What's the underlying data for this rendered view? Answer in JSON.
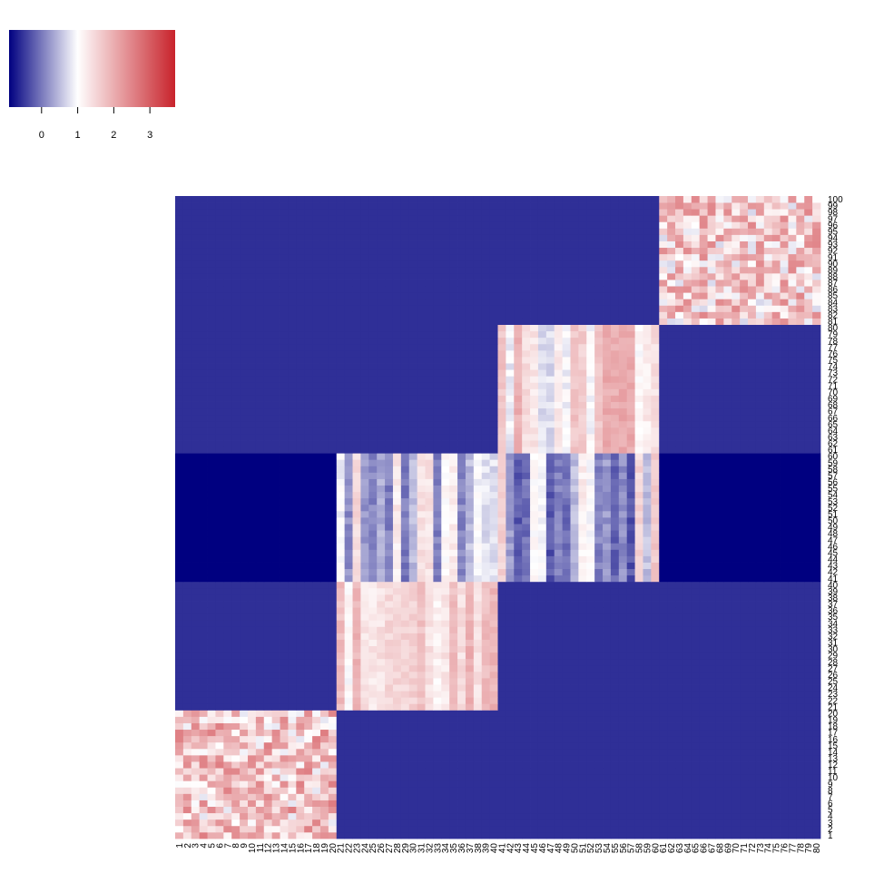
{
  "chart_data": {
    "type": "heatmap",
    "title": "",
    "xlabel": "",
    "ylabel": "",
    "n_cols": 80,
    "n_rows": 100,
    "x_tick_labels": [
      "1",
      "2",
      "3",
      "4",
      "5",
      "6",
      "7",
      "8",
      "9",
      "10",
      "11",
      "12",
      "13",
      "14",
      "15",
      "16",
      "17",
      "18",
      "19",
      "20",
      "21",
      "22",
      "23",
      "24",
      "25",
      "26",
      "27",
      "28",
      "29",
      "30",
      "31",
      "32",
      "33",
      "34",
      "35",
      "36",
      "37",
      "38",
      "39",
      "40",
      "41",
      "42",
      "43",
      "44",
      "45",
      "46",
      "47",
      "48",
      "49",
      "50",
      "51",
      "52",
      "53",
      "54",
      "55",
      "56",
      "57",
      "58",
      "59",
      "60",
      "61",
      "62",
      "63",
      "64",
      "65",
      "66",
      "67",
      "68",
      "69",
      "70",
      "71",
      "72",
      "73",
      "74",
      "75",
      "76",
      "77",
      "78",
      "79",
      "80"
    ],
    "y_tick_labels": [
      "1",
      "2",
      "3",
      "4",
      "5",
      "6",
      "7",
      "8",
      "9",
      "10",
      "11",
      "12",
      "13",
      "14",
      "15",
      "16",
      "17",
      "18",
      "19",
      "20",
      "21",
      "22",
      "23",
      "24",
      "25",
      "26",
      "27",
      "28",
      "29",
      "30",
      "31",
      "32",
      "33",
      "34",
      "35",
      "36",
      "37",
      "38",
      "39",
      "40",
      "41",
      "42",
      "43",
      "44",
      "45",
      "46",
      "47",
      "48",
      "49",
      "50",
      "51",
      "52",
      "53",
      "54",
      "55",
      "56",
      "57",
      "58",
      "59",
      "60",
      "61",
      "62",
      "63",
      "64",
      "65",
      "66",
      "67",
      "68",
      "69",
      "70",
      "71",
      "72",
      "73",
      "74",
      "75",
      "76",
      "77",
      "78",
      "79",
      "80",
      "81",
      "82",
      "83",
      "84",
      "85",
      "86",
      "87",
      "88",
      "89",
      "90",
      "91",
      "92",
      "93",
      "94",
      "95",
      "96",
      "97",
      "98",
      "99",
      "100"
    ],
    "color_scale": {
      "stops": [
        {
          "value": -0.9,
          "color": "#000080"
        },
        {
          "value": 1.0,
          "color": "#ffffff"
        },
        {
          "value": 3.7,
          "color": "#c8232b"
        }
      ],
      "legend_ticks": [
        "0",
        "1",
        "2",
        "3"
      ],
      "legend_placement": "top-left"
    },
    "blocks": [
      {
        "rows": [
          1,
          20
        ],
        "cols": [
          1,
          20
        ],
        "mean": 1.7,
        "spread": 0.9,
        "pattern": "noisy"
      },
      {
        "rows": [
          21,
          40
        ],
        "cols": [
          21,
          40
        ],
        "mean": 1.5,
        "spread": 0.5,
        "pattern": "column-striped"
      },
      {
        "rows": [
          41,
          60
        ],
        "cols": [
          21,
          40
        ],
        "mean": 0.6,
        "spread": 0.9,
        "pattern": "column-striped"
      },
      {
        "rows": [
          41,
          60
        ],
        "cols": [
          41,
          60
        ],
        "mean": 0.7,
        "spread": 1.0,
        "pattern": "column-striped"
      },
      {
        "rows": [
          61,
          80
        ],
        "cols": [
          41,
          60
        ],
        "mean": 1.4,
        "spread": 0.7,
        "pattern": "column-striped"
      },
      {
        "rows": [
          81,
          100
        ],
        "cols": [
          61,
          80
        ],
        "mean": 1.6,
        "spread": 0.9,
        "pattern": "noisy"
      }
    ],
    "background_rows": [
      {
        "rows": [
          1,
          20
        ],
        "value": -0.55
      },
      {
        "rows": [
          21,
          40
        ],
        "value": -0.55
      },
      {
        "rows": [
          41,
          60
        ],
        "value": -0.9
      },
      {
        "rows": [
          61,
          80
        ],
        "value": -0.55
      },
      {
        "rows": [
          81,
          100
        ],
        "value": -0.55
      }
    ]
  }
}
